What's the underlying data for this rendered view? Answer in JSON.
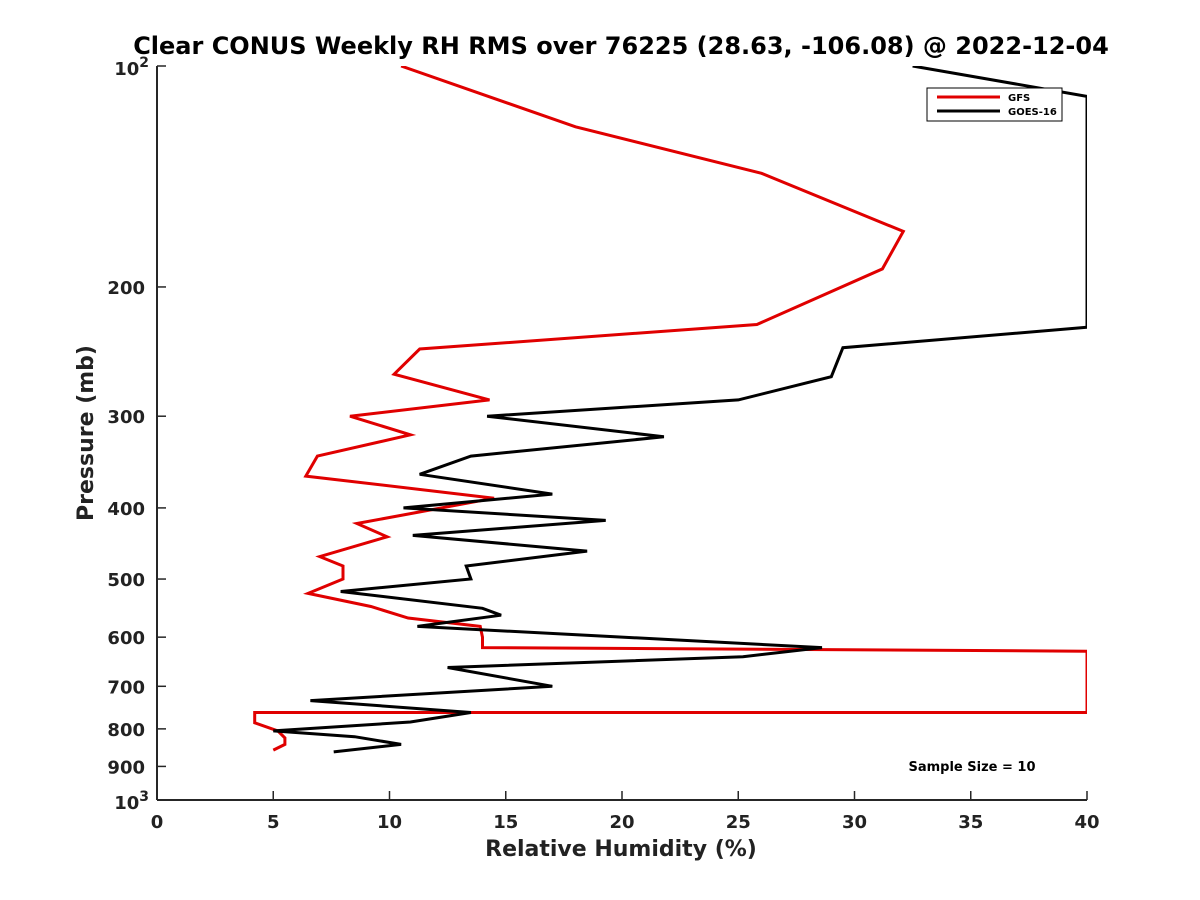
{
  "chart_data": {
    "type": "line",
    "title": "Clear CONUS Weekly RH RMS over 76225 (28.63, -106.08) @ 2022-12-04",
    "xlabel": "Relative Humidity (%)",
    "ylabel": "Pressure (mb)",
    "xlim": [
      0,
      40
    ],
    "ylim": [
      100,
      1000
    ],
    "yscale": "log",
    "y_reversed": true,
    "grid": false,
    "legend_position": "top-right",
    "annotation": "Sample Size = 10",
    "x_ticks": [
      "0",
      "5",
      "10",
      "15",
      "20",
      "25",
      "30",
      "35",
      "40"
    ],
    "x_tick_values": [
      0,
      5,
      10,
      15,
      20,
      25,
      30,
      35,
      40
    ],
    "y_ticks": [
      {
        "value": 100,
        "base": "10",
        "exp": "2"
      },
      {
        "value": 200,
        "base": "200",
        "exp": ""
      },
      {
        "value": 300,
        "base": "300",
        "exp": ""
      },
      {
        "value": 400,
        "base": "400",
        "exp": ""
      },
      {
        "value": 500,
        "base": "500",
        "exp": ""
      },
      {
        "value": 600,
        "base": "600",
        "exp": ""
      },
      {
        "value": 700,
        "base": "700",
        "exp": ""
      },
      {
        "value": 800,
        "base": "800",
        "exp": ""
      },
      {
        "value": 900,
        "base": "900",
        "exp": ""
      },
      {
        "value": 1000,
        "base": "10",
        "exp": "3"
      }
    ],
    "series": [
      {
        "name": "GFS",
        "color": "#e00000",
        "points": [
          [
            10.5,
            100
          ],
          [
            18,
            121
          ],
          [
            26,
            140
          ],
          [
            32.1,
            168
          ],
          [
            31.2,
            189
          ],
          [
            25.8,
            225
          ],
          [
            11.3,
            243
          ],
          [
            10.2,
            263
          ],
          [
            14.3,
            285
          ],
          [
            8.3,
            300
          ],
          [
            10.9,
            318
          ],
          [
            6.9,
            340
          ],
          [
            6.4,
            362
          ],
          [
            14.5,
            388
          ],
          [
            8.6,
            420
          ],
          [
            9.9,
            438
          ],
          [
            7.0,
            466
          ],
          [
            8.0,
            480
          ],
          [
            8.0,
            500
          ],
          [
            6.5,
            523
          ],
          [
            9.2,
            545
          ],
          [
            10.8,
            565
          ],
          [
            13.9,
            580
          ],
          [
            14.0,
            600
          ],
          [
            14.0,
            620
          ],
          [
            40,
            627
          ],
          [
            40,
            760
          ],
          [
            4.2,
            760
          ],
          [
            4.2,
            780
          ],
          [
            4.2,
            785
          ],
          [
            5.2,
            805
          ],
          [
            5.5,
            823
          ],
          [
            5.5,
            840
          ],
          [
            5.0,
            855
          ]
        ]
      },
      {
        "name": "GOES-16",
        "color": "#000000",
        "points": [
          [
            32.5,
            100
          ],
          [
            40,
            110
          ],
          [
            40,
            227
          ],
          [
            29.5,
            242
          ],
          [
            29.0,
            265
          ],
          [
            25.0,
            285
          ],
          [
            14.2,
            300
          ],
          [
            21.8,
            320
          ],
          [
            13.5,
            340
          ],
          [
            11.3,
            360
          ],
          [
            17.0,
            383
          ],
          [
            10.6,
            400
          ],
          [
            19.3,
            416
          ],
          [
            11.0,
            436
          ],
          [
            18.5,
            458
          ],
          [
            13.3,
            480
          ],
          [
            13.5,
            500
          ],
          [
            7.9,
            520
          ],
          [
            14.0,
            548
          ],
          [
            14.8,
            560
          ],
          [
            11.2,
            580
          ],
          [
            28.6,
            620
          ],
          [
            25.2,
            638
          ],
          [
            12.5,
            660
          ],
          [
            17.0,
            700
          ],
          [
            6.6,
            732
          ],
          [
            13.5,
            760
          ],
          [
            10.9,
            783
          ],
          [
            5.0,
            805
          ],
          [
            8.5,
            820
          ],
          [
            10.5,
            840
          ],
          [
            7.6,
            860
          ]
        ]
      }
    ]
  }
}
